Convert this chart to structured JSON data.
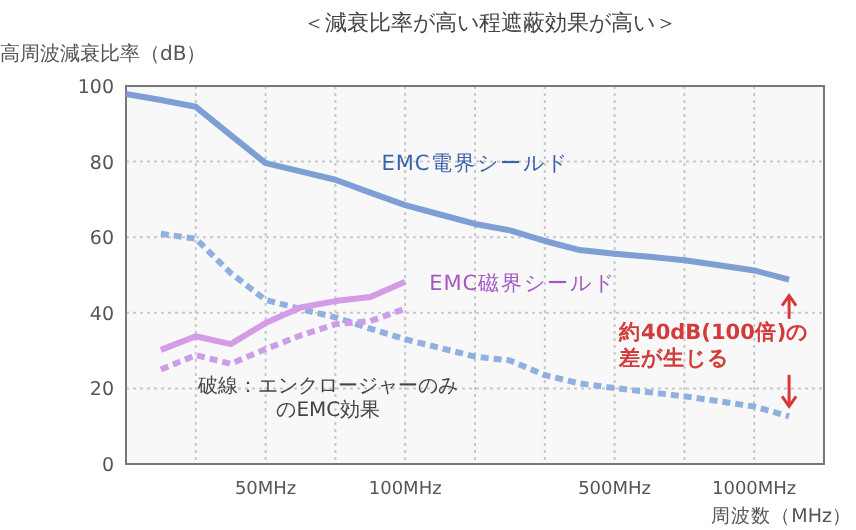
{
  "chart_data": {
    "type": "line",
    "title": "＜減衰比率が高い程遮蔽効果が高い＞",
    "ylabel": "高周波減衰比率（dB）",
    "xlabel": "周波数（MHz）",
    "categories": [
      null,
      null,
      null,
      null,
      "50MHz",
      null,
      null,
      null,
      "100MHz",
      null,
      null,
      null,
      null,
      null,
      "500MHz",
      null,
      null,
      null,
      "1000MHz",
      null,
      null
    ],
    "ylim": [
      0,
      100
    ],
    "yticks": [
      0,
      20,
      40,
      60,
      80,
      100
    ],
    "grid": true,
    "series": [
      {
        "name": "EMC電界シールド",
        "color": "#7d9fd4",
        "line_style": "solid",
        "values": [
          97.9,
          96.3,
          94.5,
          87,
          79.6,
          77.4,
          75.2,
          71.8,
          68.5,
          66,
          63.5,
          61.8,
          59,
          56.6,
          55.6,
          54.8,
          53.9,
          52.6,
          51.2,
          48.8,
          null
        ]
      },
      {
        "color": "#8fb0e0",
        "line_style": "dashed",
        "values": [
          null,
          60.9,
          59.6,
          50.5,
          43.4,
          41,
          38.8,
          35.8,
          33,
          30.7,
          28.4,
          27.4,
          23.5,
          21.3,
          20.1,
          19,
          17.9,
          16.6,
          15.2,
          12.6,
          null
        ]
      },
      {
        "name": "EMC磁界シールド",
        "color": "#d49be6",
        "line_style": "solid",
        "values": [
          null,
          30.2,
          33.8,
          31.7,
          37.3,
          41.4,
          43.1,
          44.2,
          48.2,
          null,
          null,
          null,
          null,
          null,
          null,
          null,
          null,
          null,
          null,
          null,
          null
        ]
      },
      {
        "color": "#cf9de8",
        "line_style": "dashed",
        "values": [
          null,
          25,
          28.8,
          26.5,
          30.4,
          34,
          37,
          37.8,
          41.1,
          null,
          null,
          null,
          null,
          null,
          null,
          null,
          null,
          null,
          null,
          null,
          null
        ]
      }
    ],
    "annotations": [
      "破線：エンクロージャーのみのEMC効果",
      "約40dB(100倍)の差が生じる"
    ]
  }
}
